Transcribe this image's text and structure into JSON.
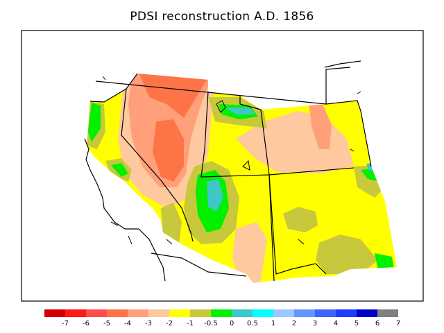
{
  "title": "PDSI reconstruction A.D. 1856",
  "legend": {
    "colors": [
      "#d40000",
      "#ff1a1a",
      "#ff4d4d",
      "#ff7447",
      "#ffa07a",
      "#ffc9a0",
      "#ffff00",
      "#c8c83c",
      "#00f000",
      "#3cc8c8",
      "#00ffff",
      "#9ac8ff",
      "#6496ff",
      "#3c64ff",
      "#1e3cff",
      "#0000c8",
      "#808080"
    ],
    "labels": [
      "-7",
      "-6",
      "-5",
      "-4",
      "-3",
      "-2",
      "-1",
      "-0.5",
      "0",
      "0.5",
      "1",
      "2",
      "3",
      "4",
      "5",
      "6",
      "7"
    ]
  }
}
